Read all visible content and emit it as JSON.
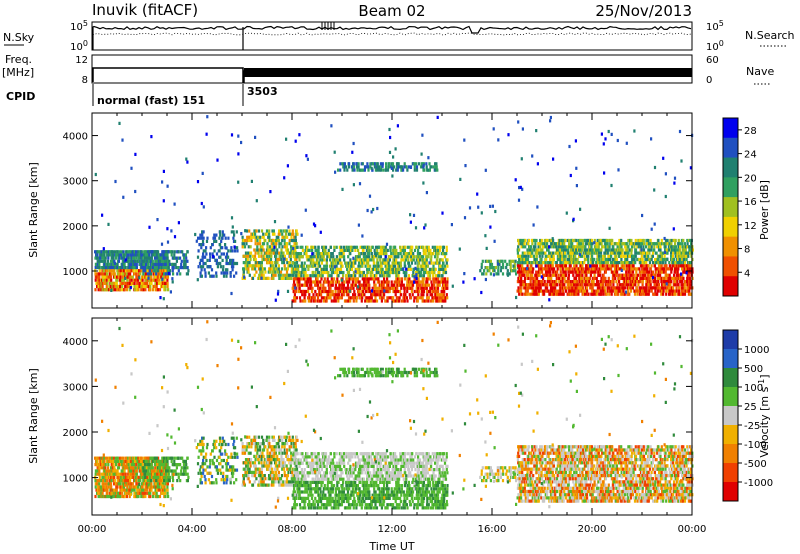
{
  "header": {
    "station": "Inuvik (fitACF)",
    "beam": "Beam 02",
    "date": "25/Nov/2013"
  },
  "strip": {
    "nsky_label": "N.Sky",
    "nsearch_label": "N.Search",
    "freq_label": "Freq.",
    "freq_unit": "[MHz]",
    "nave_label": "Nave",
    "cpid_label": "CPID",
    "noise_ticks": [
      "10^5",
      "10^0"
    ],
    "noise_ticks_right": [
      "10^5",
      "10^0"
    ],
    "freq_ticks": [
      "12",
      "8"
    ],
    "nave_ticks": [
      "60",
      "0"
    ],
    "cpid_segments": [
      {
        "label": "normal (fast) 151",
        "start_hour": 0.0,
        "end_hour": 6.0
      },
      {
        "label": "3503",
        "start_hour": 6.0,
        "end_hour": 24.0
      }
    ]
  },
  "chart_data": [
    {
      "type": "heatmap",
      "parameter": "power",
      "xlabel": "",
      "ylabel": "Slant Range [km]",
      "xlim": [
        0,
        24
      ],
      "ylim": [
        180,
        4500
      ],
      "yticks": [
        "4000",
        "3000",
        "2000",
        "1000"
      ],
      "colorbar": {
        "label": "Power [dB]",
        "ticks": [
          "28",
          "24",
          "20",
          "16",
          "12",
          "8",
          "4"
        ],
        "range": [
          0,
          30
        ],
        "colors": [
          "#0000ee",
          "#2050c0",
          "#208070",
          "#30a060",
          "#a0c020",
          "#f0d000",
          "#f09000",
          "#f05000",
          "#e00000"
        ]
      }
    },
    {
      "type": "heatmap",
      "parameter": "velocity",
      "xlabel": "Time UT",
      "ylabel": "Slant Range [km]",
      "xlim": [
        0,
        24
      ],
      "ylim": [
        180,
        4500
      ],
      "xticks": [
        "00:00",
        "04:00",
        "08:00",
        "12:00",
        "16:00",
        "20:00",
        "00:00"
      ],
      "yticks": [
        "4000",
        "3000",
        "2000",
        "1000"
      ],
      "colorbar": {
        "label": "Velocity [m s^-1]",
        "ticks": [
          "1000",
          "500",
          "100",
          "25",
          "-25",
          "-100",
          "-500",
          "-1000"
        ],
        "colors": [
          "#1e3ca8",
          "#2864c8",
          "#2f8a3c",
          "#52b830",
          "#c8c8c8",
          "#f0b000",
          "#f08000",
          "#f04000",
          "#e00000"
        ]
      }
    }
  ]
}
